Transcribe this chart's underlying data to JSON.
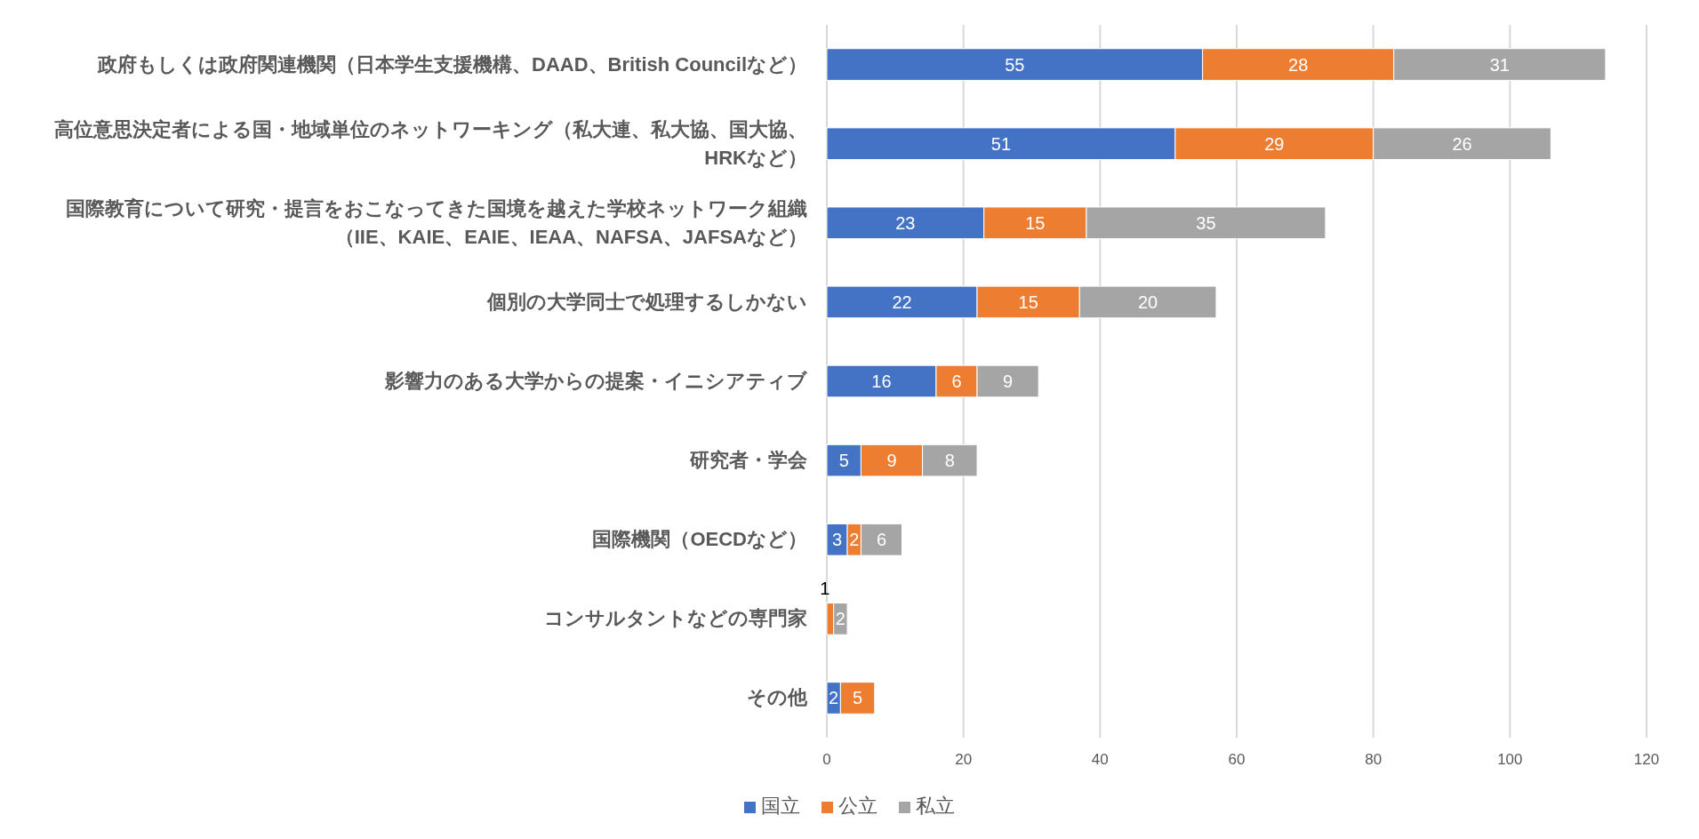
{
  "chart_data": {
    "type": "bar",
    "orientation": "horizontal",
    "stacked": true,
    "categories": [
      "政府もしくは政府関連機関（日本学生支援機構、DAAD、British Councilなど）",
      "高位意思決定者による国・地域単位のネットワーキング（私大連、私大協、国大協、HRKなど）",
      "国際教育について研究・提言をおこなってきた国境を越えた学校ネットワーク組織（IIE、KAIE、EAIE、IEAA、NAFSA、JAFSAなど）",
      "個別の大学同士で処理するしかない",
      "影響力のある大学からの提案・イニシアティブ",
      "研究者・学会",
      "国際機関（OECDなど）",
      "コンサルタントなどの専門家",
      "その他"
    ],
    "series": [
      {
        "name": "国立",
        "color": "#4472c4",
        "values": [
          55,
          51,
          23,
          22,
          16,
          5,
          3,
          null,
          2
        ]
      },
      {
        "name": "公立",
        "color": "#ed7d31",
        "values": [
          28,
          29,
          15,
          15,
          6,
          9,
          2,
          1,
          5
        ]
      },
      {
        "name": "私立",
        "color": "#a5a5a5",
        "values": [
          31,
          26,
          35,
          20,
          9,
          8,
          6,
          2,
          null
        ]
      }
    ],
    "xlim": [
      0,
      120
    ],
    "xticks": [
      0,
      20,
      40,
      60,
      80,
      100,
      120
    ],
    "grid": "x",
    "legend": "bottom",
    "data_labels": true
  }
}
